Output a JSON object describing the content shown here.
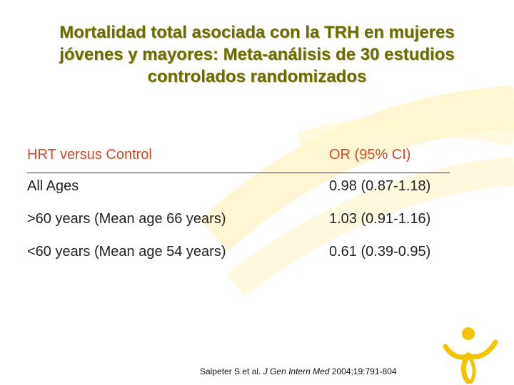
{
  "slide": {
    "title_lines": [
      "Mortalidad total asociada con la TRH en mujeres",
      "jóvenes y mayores: Meta-análisis de 30 estudios",
      "controlados randomizados"
    ],
    "table": {
      "header": {
        "left": "HRT versus Control",
        "right": "OR (95% CI)"
      },
      "rows": [
        {
          "left": "All Ages",
          "right": "0.98 (0.87-1.18)"
        },
        {
          "left": ">60 years (Mean age 66 years)",
          "right": "1.03 (0.91-1.16)"
        },
        {
          "left": "<60 years (Mean age 54 years)",
          "right": "0.61 (0.39-0.95)"
        }
      ]
    },
    "citation": {
      "authors": "Salpeter S et al.",
      "journal": "J Gen Intern Med",
      "details": "2004;19:791-804"
    },
    "colors": {
      "title": "#6b6b00",
      "header_text": "#d04a2a",
      "accent_yellow": "#f5c400",
      "decor_cream": "#fff4c0"
    },
    "logo_icon": "person-figure-icon"
  }
}
